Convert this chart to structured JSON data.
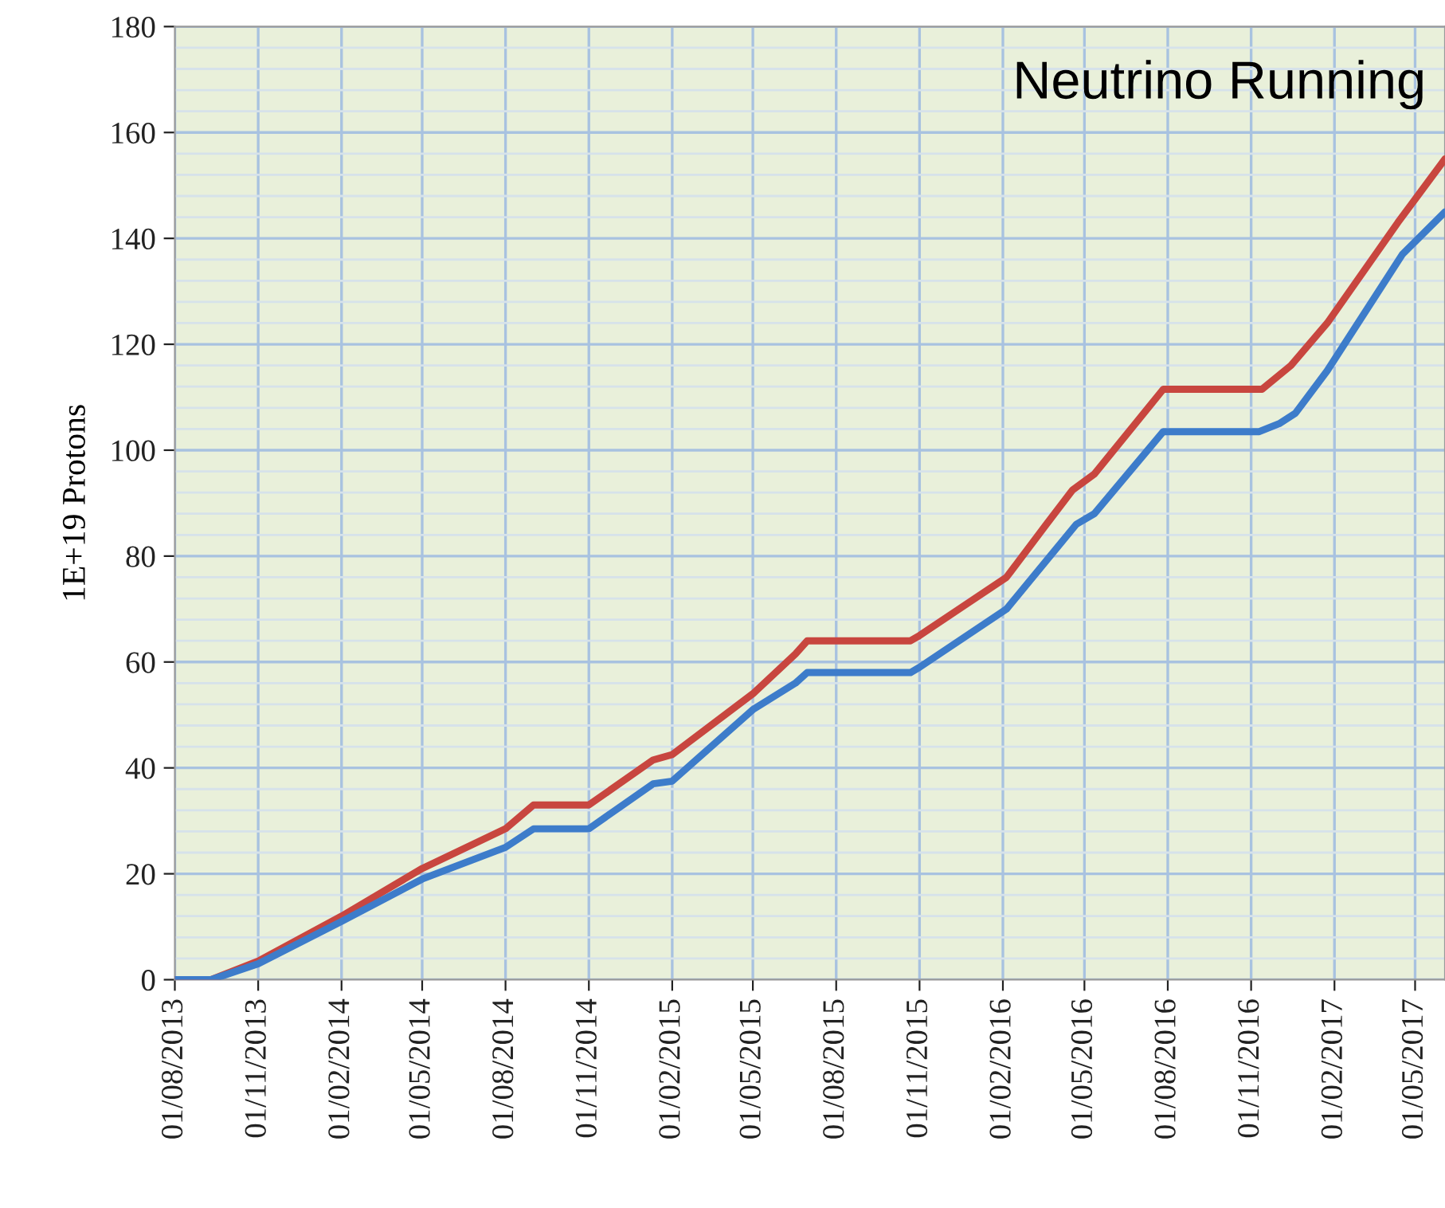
{
  "chart_data": {
    "type": "line",
    "title": "Neutrino Running",
    "ylabel": "1E+19 Protons",
    "xlim": [
      "2013-08-01",
      "2017-06-03"
    ],
    "ylim": [
      0,
      180
    ],
    "yticks": [
      0,
      20,
      40,
      60,
      80,
      100,
      120,
      140,
      160,
      180
    ],
    "xticks": [
      {
        "value": "2013-08-01",
        "label": "01/08/2013"
      },
      {
        "value": "2013-11-01",
        "label": "01/11/2013"
      },
      {
        "value": "2014-02-01",
        "label": "01/02/2014"
      },
      {
        "value": "2014-05-01",
        "label": "01/05/2014"
      },
      {
        "value": "2014-08-01",
        "label": "01/08/2014"
      },
      {
        "value": "2014-11-01",
        "label": "01/11/2014"
      },
      {
        "value": "2015-02-01",
        "label": "01/02/2015"
      },
      {
        "value": "2015-05-01",
        "label": "01/05/2015"
      },
      {
        "value": "2015-08-01",
        "label": "01/08/2015"
      },
      {
        "value": "2015-11-01",
        "label": "01/11/2015"
      },
      {
        "value": "2016-02-01",
        "label": "01/02/2016"
      },
      {
        "value": "2016-05-01",
        "label": "01/05/2016"
      },
      {
        "value": "2016-08-01",
        "label": "01/08/2016"
      },
      {
        "value": "2016-11-01",
        "label": "01/11/2016"
      },
      {
        "value": "2017-02-01",
        "label": "01/02/2017"
      },
      {
        "value": "2017-05-01",
        "label": "01/05/2017"
      }
    ],
    "grid": true,
    "marker": "none",
    "line_style": "solid",
    "series": [
      {
        "color": "#c8463f",
        "x": [
          "2013-08-01",
          "2013-09-10",
          "2013-11-01",
          "2014-02-01",
          "2014-05-01",
          "2014-08-01",
          "2014-09-01",
          "2014-11-01",
          "2015-01-11",
          "2015-02-01",
          "2015-05-01",
          "2015-06-17",
          "2015-06-30",
          "2015-10-22",
          "2015-11-01",
          "2016-02-05",
          "2016-03-20",
          "2016-04-18",
          "2016-05-12",
          "2016-07-27",
          "2016-11-13",
          "2016-12-15",
          "2017-01-24",
          "2017-04-12",
          "2017-06-03"
        ],
        "values": [
          0,
          0,
          3.5,
          12,
          21,
          28.5,
          33,
          33,
          41.5,
          42.5,
          54,
          61.5,
          64,
          64,
          65,
          76,
          86,
          92.5,
          95.5,
          111.5,
          111.5,
          116,
          124,
          143,
          155
        ]
      },
      {
        "color": "#3d7cca",
        "x": [
          "2013-08-01",
          "2013-09-10",
          "2013-11-01",
          "2014-02-01",
          "2014-05-01",
          "2014-08-01",
          "2014-09-01",
          "2014-11-01",
          "2015-01-11",
          "2015-02-01",
          "2015-05-01",
          "2015-06-17",
          "2015-06-30",
          "2015-10-22",
          "2015-11-01",
          "2016-02-05",
          "2016-04-22",
          "2016-05-12",
          "2016-07-27",
          "2016-11-10",
          "2016-12-02",
          "2016-12-20",
          "2017-01-24",
          "2017-04-17",
          "2017-06-03"
        ],
        "values": [
          0,
          0,
          3,
          11,
          19,
          25,
          28.5,
          28.5,
          37,
          37.5,
          51,
          56,
          58,
          58,
          59,
          70,
          86,
          88,
          103.5,
          103.5,
          105,
          107,
          115,
          137,
          145
        ]
      }
    ]
  }
}
